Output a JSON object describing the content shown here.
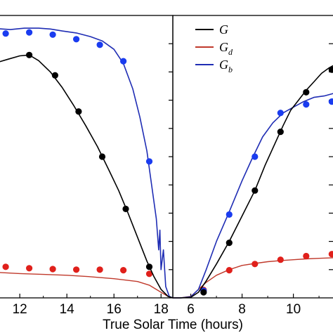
{
  "chart_data": {
    "type": "line",
    "xlabel": "True Solar Time (hours)",
    "legend": {
      "placement": "top-right of right panel",
      "entries": [
        {
          "key": "G",
          "base": "G",
          "sub": "",
          "color": "#000000"
        },
        {
          "key": "Gd",
          "base": "G",
          "sub": "d",
          "color": "#c0392b"
        },
        {
          "key": "Gb",
          "base": "G",
          "sub": "b",
          "color": "#1f2db4"
        }
      ]
    },
    "panels": [
      {
        "xlim": [
          11.1,
          18.5
        ],
        "xticks": [
          12,
          14,
          16,
          18
        ],
        "series": {
          "G": {
            "color": "#000000",
            "line": [
              [
                11.1,
                0.835
              ],
              [
                11.5,
                0.845
              ],
              [
                12.0,
                0.857
              ],
              [
                12.4,
                0.86
              ],
              [
                12.8,
                0.84
              ],
              [
                13.3,
                0.8
              ],
              [
                13.8,
                0.745
              ],
              [
                14.3,
                0.68
              ],
              [
                14.8,
                0.61
              ],
              [
                15.3,
                0.535
              ],
              [
                15.8,
                0.45
              ],
              [
                16.2,
                0.38
              ],
              [
                16.6,
                0.3
              ],
              [
                17.0,
                0.215
              ],
              [
                17.4,
                0.13
              ],
              [
                17.7,
                0.075
              ],
              [
                18.0,
                0.03
              ],
              [
                18.3,
                0.005
              ],
              [
                18.5,
                0.0
              ]
            ],
            "markers": [
              [
                12.4,
                0.86
              ],
              [
                13.5,
                0.788
              ],
              [
                14.5,
                0.66
              ],
              [
                15.5,
                0.5
              ],
              [
                16.5,
                0.315
              ],
              [
                17.5,
                0.11
              ]
            ]
          },
          "Gb": {
            "color": "#1f2db4",
            "line": [
              [
                11.1,
                0.953
              ],
              [
                11.6,
                0.95
              ],
              [
                12.2,
                0.955
              ],
              [
                12.8,
                0.955
              ],
              [
                13.3,
                0.952
              ],
              [
                13.8,
                0.945
              ],
              [
                14.4,
                0.938
              ],
              [
                15.0,
                0.925
              ],
              [
                15.5,
                0.91
              ],
              [
                16.0,
                0.88
              ],
              [
                16.4,
                0.83
              ],
              [
                16.8,
                0.74
              ],
              [
                17.1,
                0.64
              ],
              [
                17.4,
                0.52
              ],
              [
                17.6,
                0.4
              ],
              [
                17.8,
                0.28
              ],
              [
                17.9,
                0.17
              ],
              [
                17.95,
                0.24
              ],
              [
                18.0,
                0.1
              ],
              [
                18.1,
                0.17
              ],
              [
                18.2,
                0.04
              ],
              [
                18.35,
                0.005
              ],
              [
                18.5,
                0.0
              ]
            ],
            "markers": [
              [
                11.4,
                0.936
              ],
              [
                12.4,
                0.94
              ],
              [
                13.4,
                0.932
              ],
              [
                14.4,
                0.916
              ],
              [
                15.4,
                0.896
              ],
              [
                16.4,
                0.838
              ],
              [
                17.5,
                0.483
              ]
            ]
          },
          "Gd": {
            "color": "#c0392b",
            "line": [
              [
                11.1,
                0.09
              ],
              [
                12.0,
                0.086
              ],
              [
                13.0,
                0.083
              ],
              [
                14.0,
                0.08
              ],
              [
                15.0,
                0.075
              ],
              [
                16.0,
                0.068
              ],
              [
                17.0,
                0.058
              ],
              [
                17.5,
                0.045
              ],
              [
                18.0,
                0.02
              ],
              [
                18.3,
                0.005
              ],
              [
                18.5,
                0.0
              ]
            ],
            "markers": [
              [
                11.4,
                0.11
              ],
              [
                12.4,
                0.105
              ],
              [
                13.4,
                0.102
              ],
              [
                14.4,
                0.1
              ],
              [
                15.4,
                0.1
              ],
              [
                16.4,
                0.098
              ],
              [
                17.5,
                0.085
              ]
            ]
          }
        }
      },
      {
        "xlim": [
          5.3,
          11.6
        ],
        "xticks": [
          6,
          8,
          10
        ],
        "series": {
          "G": {
            "color": "#000000",
            "line": [
              [
                5.3,
                0.0
              ],
              [
                5.6,
                0.0
              ],
              [
                6.0,
                0.002
              ],
              [
                6.3,
                0.02
              ],
              [
                6.6,
                0.06
              ],
              [
                7.0,
                0.12
              ],
              [
                7.5,
                0.2
              ],
              [
                8.0,
                0.29
              ],
              [
                8.5,
                0.38
              ],
              [
                8.9,
                0.47
              ],
              [
                9.3,
                0.55
              ],
              [
                9.6,
                0.61
              ],
              [
                9.9,
                0.665
              ],
              [
                10.2,
                0.7
              ],
              [
                10.5,
                0.735
              ],
              [
                10.8,
                0.765
              ],
              [
                11.1,
                0.795
              ],
              [
                11.4,
                0.815
              ],
              [
                11.6,
                0.825
              ]
            ],
            "markers": [
              [
                6.5,
                0.02
              ],
              [
                7.5,
                0.195
              ],
              [
                8.5,
                0.38
              ],
              [
                9.5,
                0.588
              ],
              [
                10.5,
                0.728
              ],
              [
                11.5,
                0.808
              ]
            ]
          },
          "Gb": {
            "color": "#1f2db4",
            "line": [
              [
                5.3,
                0.0
              ],
              [
                5.6,
                0.0
              ],
              [
                6.0,
                0.004
              ],
              [
                6.3,
                0.03
              ],
              [
                6.6,
                0.1
              ],
              [
                7.0,
                0.2
              ],
              [
                7.5,
                0.305
              ],
              [
                8.0,
                0.415
              ],
              [
                8.4,
                0.495
              ],
              [
                8.8,
                0.57
              ],
              [
                9.2,
                0.62
              ],
              [
                9.6,
                0.655
              ],
              [
                10.0,
                0.675
              ],
              [
                10.4,
                0.695
              ],
              [
                10.8,
                0.71
              ],
              [
                11.2,
                0.715
              ],
              [
                11.6,
                0.725
              ]
            ],
            "markers": [
              [
                6.5,
                0.025
              ],
              [
                7.5,
                0.295
              ],
              [
                8.5,
                0.5
              ],
              [
                9.5,
                0.655
              ],
              [
                10.5,
                0.685
              ],
              [
                11.5,
                0.695
              ]
            ]
          },
          "Gd": {
            "color": "#c0392b",
            "line": [
              [
                5.3,
                0.0
              ],
              [
                5.6,
                0.0
              ],
              [
                6.0,
                0.005
              ],
              [
                6.3,
                0.03
              ],
              [
                6.6,
                0.055
              ],
              [
                7.0,
                0.08
              ],
              [
                7.5,
                0.1
              ],
              [
                8.0,
                0.115
              ],
              [
                8.5,
                0.122
              ],
              [
                9.0,
                0.128
              ],
              [
                9.5,
                0.132
              ],
              [
                10.0,
                0.135
              ],
              [
                10.5,
                0.138
              ],
              [
                11.0,
                0.14
              ],
              [
                11.6,
                0.142
              ]
            ],
            "markers": [
              [
                6.5,
                0.028
              ],
              [
                7.5,
                0.098
              ],
              [
                8.5,
                0.12
              ],
              [
                9.5,
                0.135
              ],
              [
                10.5,
                0.148
              ],
              [
                11.5,
                0.155
              ]
            ]
          }
        }
      }
    ]
  }
}
